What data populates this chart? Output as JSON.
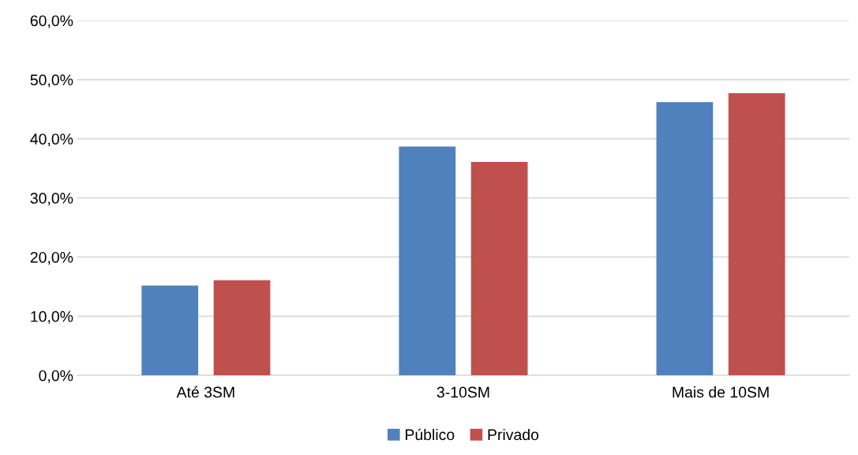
{
  "chart_data": {
    "type": "bar",
    "categories": [
      "Até 3SM",
      "3-10SM",
      "Mais de 10SM"
    ],
    "series": [
      {
        "name": "Público",
        "color": "#4f81bd",
        "values": [
          15.2,
          38.7,
          46.2
        ]
      },
      {
        "name": "Privado",
        "color": "#c0504d",
        "values": [
          16.1,
          36.1,
          47.7
        ]
      }
    ],
    "ylim": [
      0,
      60
    ],
    "yticks": [
      {
        "value": 0,
        "label": "0,0%"
      },
      {
        "value": 10,
        "label": "10,0%"
      },
      {
        "value": 20,
        "label": "20,0%"
      },
      {
        "value": 30,
        "label": "30,0%"
      },
      {
        "value": 40,
        "label": "40,0%"
      },
      {
        "value": 50,
        "label": "50,0%"
      },
      {
        "value": 60,
        "label": "60,0%"
      }
    ],
    "grid": "y",
    "legend": "bottom"
  }
}
